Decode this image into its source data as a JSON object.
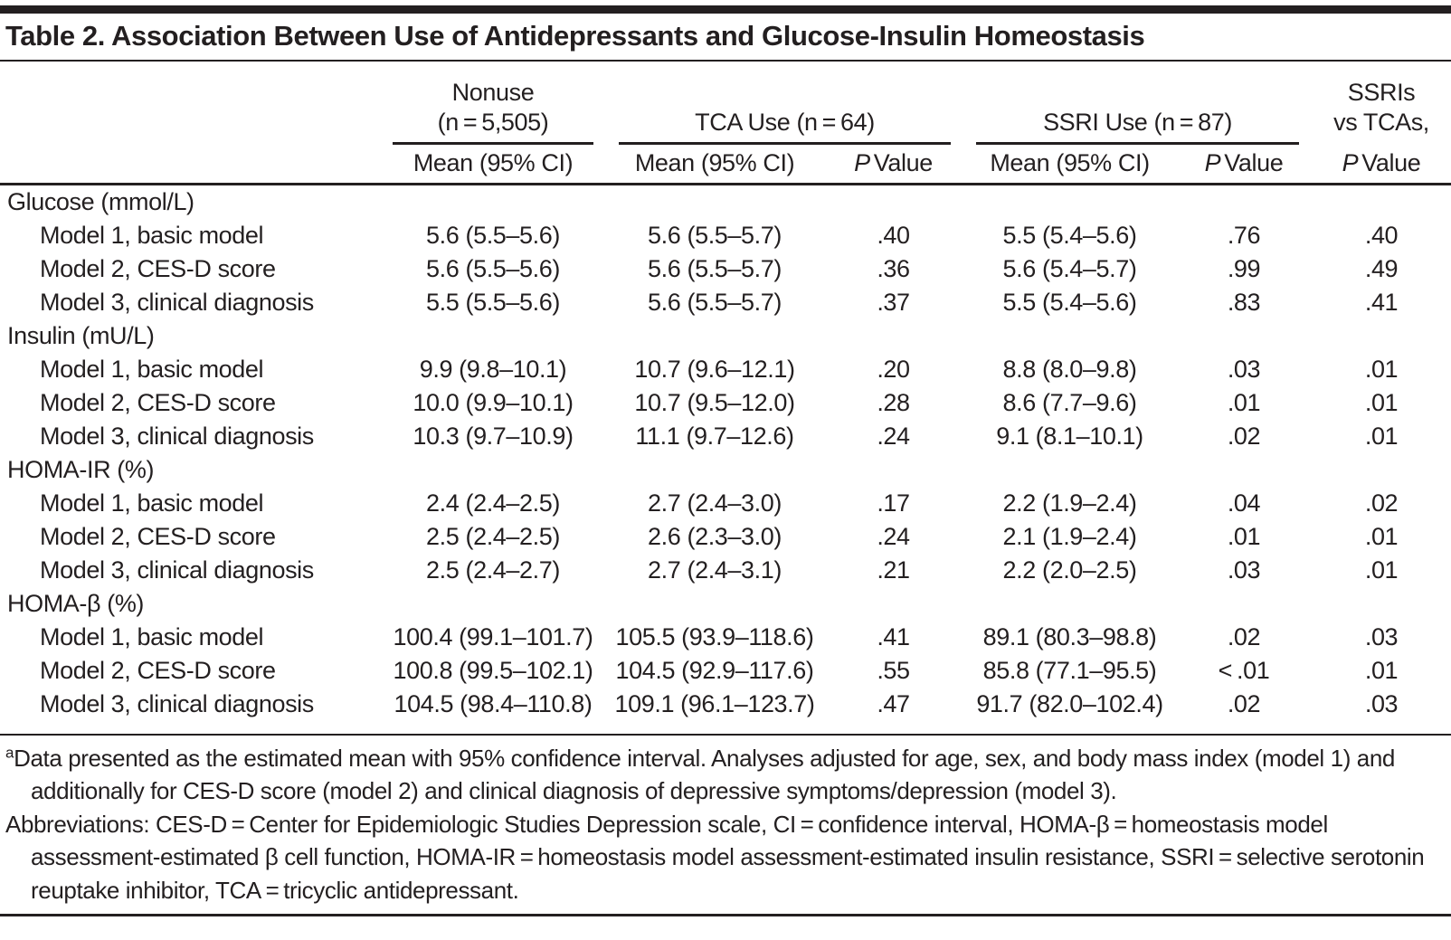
{
  "title": "Table 2. Association Between Use of Antidepressants and Glucose-Insulin Homeostasis",
  "header": {
    "groups": {
      "nonuse": {
        "line1": "Nonuse",
        "line2": "(n = 5,505)"
      },
      "tca": "TCA Use (n = 64)",
      "ssri": "SSRI Use (n = 87)",
      "ssri_vs_tca": {
        "line1": "SSRIs",
        "line2": "vs TCAs,"
      }
    },
    "mean_ci_label": "Mean (95% CI)",
    "p_label": "P",
    "value_label": "Value"
  },
  "table": {
    "sections": [
      {
        "label": "Glucose (mmol/L)",
        "rows": [
          {
            "label": "Model 1, basic model",
            "nonuse_mean": "5.6 (5.5–5.6)",
            "tca_mean": "5.6 (5.5–5.7)",
            "tca_p": ".40",
            "ssri_mean": "5.5 (5.4–5.6)",
            "ssri_p": ".76",
            "ssri_vs_tca_p": ".40"
          },
          {
            "label": "Model 2, CES-D score",
            "nonuse_mean": "5.6 (5.5–5.6)",
            "tca_mean": "5.6 (5.5–5.7)",
            "tca_p": ".36",
            "ssri_mean": "5.6 (5.4–5.7)",
            "ssri_p": ".99",
            "ssri_vs_tca_p": ".49"
          },
          {
            "label": "Model 3, clinical diagnosis",
            "nonuse_mean": "5.5 (5.5–5.6)",
            "tca_mean": "5.6 (5.5–5.7)",
            "tca_p": ".37",
            "ssri_mean": "5.5 (5.4–5.6)",
            "ssri_p": ".83",
            "ssri_vs_tca_p": ".41"
          }
        ]
      },
      {
        "label": "Insulin (mU/L)",
        "rows": [
          {
            "label": "Model 1, basic model",
            "nonuse_mean": "9.9 (9.8–10.1)",
            "tca_mean": "10.7 (9.6–12.1)",
            "tca_p": ".20",
            "ssri_mean": "8.8 (8.0–9.8)",
            "ssri_p": ".03",
            "ssri_vs_tca_p": ".01"
          },
          {
            "label": "Model 2, CES-D score",
            "nonuse_mean": "10.0 (9.9–10.1)",
            "tca_mean": "10.7 (9.5–12.0)",
            "tca_p": ".28",
            "ssri_mean": "8.6 (7.7–9.6)",
            "ssri_p": ".01",
            "ssri_vs_tca_p": ".01"
          },
          {
            "label": "Model 3, clinical diagnosis",
            "nonuse_mean": "10.3 (9.7–10.9)",
            "tca_mean": "11.1 (9.7–12.6)",
            "tca_p": ".24",
            "ssri_mean": "9.1 (8.1–10.1)",
            "ssri_p": ".02",
            "ssri_vs_tca_p": ".01"
          }
        ]
      },
      {
        "label": "HOMA-IR (%)",
        "rows": [
          {
            "label": "Model 1, basic model",
            "nonuse_mean": "2.4 (2.4–2.5)",
            "tca_mean": "2.7 (2.4–3.0)",
            "tca_p": ".17",
            "ssri_mean": "2.2 (1.9–2.4)",
            "ssri_p": ".04",
            "ssri_vs_tca_p": ".02"
          },
          {
            "label": "Model 2, CES-D score",
            "nonuse_mean": "2.5 (2.4–2.5)",
            "tca_mean": "2.6 (2.3–3.0)",
            "tca_p": ".24",
            "ssri_mean": "2.1 (1.9–2.4)",
            "ssri_p": ".01",
            "ssri_vs_tca_p": ".01"
          },
          {
            "label": "Model 3, clinical diagnosis",
            "nonuse_mean": "2.5 (2.4–2.7)",
            "tca_mean": "2.7 (2.4–3.1)",
            "tca_p": ".21",
            "ssri_mean": "2.2 (2.0–2.5)",
            "ssri_p": ".03",
            "ssri_vs_tca_p": ".01"
          }
        ]
      },
      {
        "label": "HOMA-β (%)",
        "rows": [
          {
            "label": "Model 1, basic model",
            "nonuse_mean": "100.4 (99.1–101.7)",
            "tca_mean": "105.5 (93.9–118.6)",
            "tca_p": ".41",
            "ssri_mean": "89.1 (80.3–98.8)",
            "ssri_p": ".02",
            "ssri_vs_tca_p": ".03"
          },
          {
            "label": "Model 2, CES-D score",
            "nonuse_mean": "100.8 (99.5–102.1)",
            "tca_mean": "104.5 (92.9–117.6)",
            "tca_p": ".55",
            "ssri_mean": "85.8 (77.1–95.5)",
            "ssri_p": "< .01",
            "ssri_vs_tca_p": ".01"
          },
          {
            "label": "Model 3, clinical diagnosis",
            "nonuse_mean": "104.5 (98.4–110.8)",
            "tca_mean": "109.1 (96.1–123.7)",
            "tca_p": ".47",
            "ssri_mean": "91.7 (82.0–102.4)",
            "ssri_p": ".02",
            "ssri_vs_tca_p": ".03"
          }
        ]
      }
    ]
  },
  "footnotes": {
    "data_note": {
      "marker": "a",
      "text": "Data presented as the estimated mean with 95% confidence interval. Analyses adjusted for age, sex, and body mass index (model 1) and additionally for CES-D score (model 2) and clinical diagnosis of depressive symptoms/depression (model 3)."
    },
    "abbreviations": "Abbreviations: CES-D = Center for Epidemiologic Studies Depression scale, CI = confidence interval, HOMA-β = homeostasis model assessment-estimated β cell function, HOMA-IR = homeostasis model assessment-estimated insulin resistance, SSRI = selective serotonin reuptake inhibitor, TCA = tricyclic antidepressant."
  },
  "colors": {
    "text": "#231f20",
    "rule": "#231f20",
    "background": "#ffffff"
  }
}
